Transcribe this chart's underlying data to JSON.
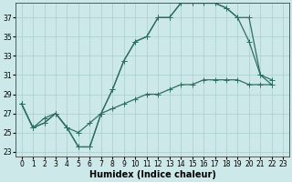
{
  "xlabel": "Humidex (Indice chaleur)",
  "bg_color": "#cce8e8",
  "grid_color": "#aacece",
  "line_color": "#2d7060",
  "xlim": [
    -0.5,
    23.5
  ],
  "ylim": [
    22.5,
    38.5
  ],
  "xticks": [
    0,
    1,
    2,
    3,
    4,
    5,
    6,
    7,
    8,
    9,
    10,
    11,
    12,
    13,
    14,
    15,
    16,
    17,
    18,
    19,
    20,
    21,
    22,
    23
  ],
  "yticks": [
    23,
    25,
    27,
    29,
    31,
    33,
    35,
    37
  ],
  "line1_y": [
    28.0,
    25.5,
    26.0,
    27.0,
    25.5,
    23.5,
    23.5,
    27.0,
    29.5,
    32.5,
    34.5,
    35.0,
    37.0,
    37.0,
    38.5,
    38.5,
    38.5,
    38.5,
    38.0,
    37.0,
    37.0,
    31.0,
    30.5,
    null
  ],
  "line2_y": [
    28.0,
    25.5,
    26.0,
    27.0,
    25.5,
    23.5,
    23.5,
    27.0,
    29.5,
    32.5,
    34.5,
    35.0,
    37.0,
    37.0,
    38.5,
    38.5,
    38.5,
    38.5,
    38.0,
    37.0,
    34.5,
    31.0,
    30.0,
    null
  ],
  "line3_y": [
    28.0,
    25.5,
    26.5,
    27.0,
    25.5,
    25.0,
    26.0,
    27.0,
    27.5,
    28.0,
    28.5,
    29.0,
    29.0,
    29.5,
    30.0,
    30.0,
    30.5,
    30.5,
    30.5,
    30.5,
    30.0,
    30.0,
    30.0,
    null
  ],
  "marker_size": 2.5,
  "line_width": 0.9,
  "font_size_ticks": 5.5,
  "font_size_xlabel": 7
}
